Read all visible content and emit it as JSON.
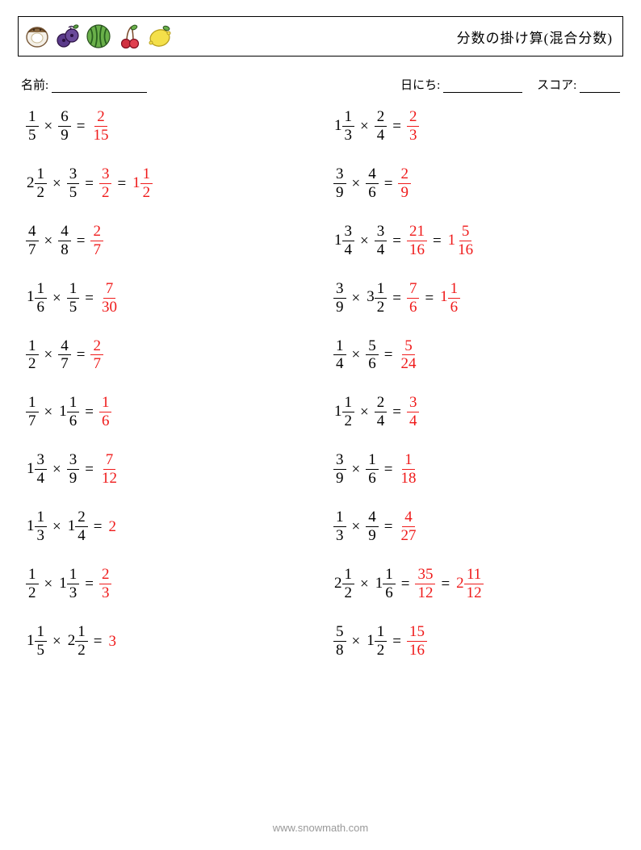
{
  "header": {
    "title": "分数の掛け算(混合分数)"
  },
  "meta": {
    "name_label": "名前:",
    "name_blank_width": 118,
    "date_label": "日にち:",
    "date_blank_width": 98,
    "score_label": "スコア:",
    "score_blank_width": 50
  },
  "colors": {
    "answer": "#ef1a1a",
    "text": "#000000",
    "footer": "#999999",
    "bg": "#ffffff"
  },
  "typography": {
    "equation_fontsize": 19,
    "title_fontsize": 17,
    "meta_fontsize": 15
  },
  "problems": [
    {
      "a": {
        "n": 1,
        "d": 5
      },
      "b": {
        "n": 6,
        "d": 9
      },
      "ans": [
        {
          "n": 2,
          "d": 15
        }
      ]
    },
    {
      "a": {
        "w": 1,
        "n": 1,
        "d": 3
      },
      "b": {
        "n": 2,
        "d": 4
      },
      "ans": [
        {
          "n": 2,
          "d": 3
        }
      ]
    },
    {
      "a": {
        "w": 2,
        "n": 1,
        "d": 2
      },
      "b": {
        "n": 3,
        "d": 5
      },
      "ans": [
        {
          "n": 3,
          "d": 2
        },
        {
          "w": 1,
          "n": 1,
          "d": 2
        }
      ]
    },
    {
      "a": {
        "n": 3,
        "d": 9
      },
      "b": {
        "n": 4,
        "d": 6
      },
      "ans": [
        {
          "n": 2,
          "d": 9
        }
      ]
    },
    {
      "a": {
        "n": 4,
        "d": 7
      },
      "b": {
        "n": 4,
        "d": 8
      },
      "ans": [
        {
          "n": 2,
          "d": 7
        }
      ]
    },
    {
      "a": {
        "w": 1,
        "n": 3,
        "d": 4
      },
      "b": {
        "n": 3,
        "d": 4
      },
      "ans": [
        {
          "n": 21,
          "d": 16
        },
        {
          "w": 1,
          "n": 5,
          "d": 16
        }
      ]
    },
    {
      "a": {
        "w": 1,
        "n": 1,
        "d": 6
      },
      "b": {
        "n": 1,
        "d": 5
      },
      "ans": [
        {
          "n": 7,
          "d": 30
        }
      ]
    },
    {
      "a": {
        "n": 3,
        "d": 9
      },
      "b": {
        "w": 3,
        "n": 1,
        "d": 2
      },
      "ans": [
        {
          "n": 7,
          "d": 6
        },
        {
          "w": 1,
          "n": 1,
          "d": 6
        }
      ]
    },
    {
      "a": {
        "n": 1,
        "d": 2
      },
      "b": {
        "n": 4,
        "d": 7
      },
      "ans": [
        {
          "n": 2,
          "d": 7
        }
      ]
    },
    {
      "a": {
        "n": 1,
        "d": 4
      },
      "b": {
        "n": 5,
        "d": 6
      },
      "ans": [
        {
          "n": 5,
          "d": 24
        }
      ]
    },
    {
      "a": {
        "n": 1,
        "d": 7
      },
      "b": {
        "w": 1,
        "n": 1,
        "d": 6
      },
      "ans": [
        {
          "n": 1,
          "d": 6
        }
      ]
    },
    {
      "a": {
        "w": 1,
        "n": 1,
        "d": 2
      },
      "b": {
        "n": 2,
        "d": 4
      },
      "ans": [
        {
          "n": 3,
          "d": 4
        }
      ]
    },
    {
      "a": {
        "w": 1,
        "n": 3,
        "d": 4
      },
      "b": {
        "n": 3,
        "d": 9
      },
      "ans": [
        {
          "n": 7,
          "d": 12
        }
      ]
    },
    {
      "a": {
        "n": 3,
        "d": 9
      },
      "b": {
        "n": 1,
        "d": 6
      },
      "ans": [
        {
          "n": 1,
          "d": 18
        }
      ]
    },
    {
      "a": {
        "w": 1,
        "n": 1,
        "d": 3
      },
      "b": {
        "w": 1,
        "n": 2,
        "d": 4
      },
      "ans": [
        {
          "w": 2
        }
      ]
    },
    {
      "a": {
        "n": 1,
        "d": 3
      },
      "b": {
        "n": 4,
        "d": 9
      },
      "ans": [
        {
          "n": 4,
          "d": 27
        }
      ]
    },
    {
      "a": {
        "n": 1,
        "d": 2
      },
      "b": {
        "w": 1,
        "n": 1,
        "d": 3
      },
      "ans": [
        {
          "n": 2,
          "d": 3
        }
      ]
    },
    {
      "a": {
        "w": 2,
        "n": 1,
        "d": 2
      },
      "b": {
        "w": 1,
        "n": 1,
        "d": 6
      },
      "ans": [
        {
          "n": 35,
          "d": 12
        },
        {
          "w": 2,
          "n": 11,
          "d": 12
        }
      ]
    },
    {
      "a": {
        "w": 1,
        "n": 1,
        "d": 5
      },
      "b": {
        "w": 2,
        "n": 1,
        "d": 2
      },
      "ans": [
        {
          "w": 3
        }
      ]
    },
    {
      "a": {
        "n": 5,
        "d": 8
      },
      "b": {
        "w": 1,
        "n": 1,
        "d": 2
      },
      "ans": [
        {
          "n": 15,
          "d": 16
        }
      ]
    }
  ],
  "footer": "www.snowmath.com"
}
